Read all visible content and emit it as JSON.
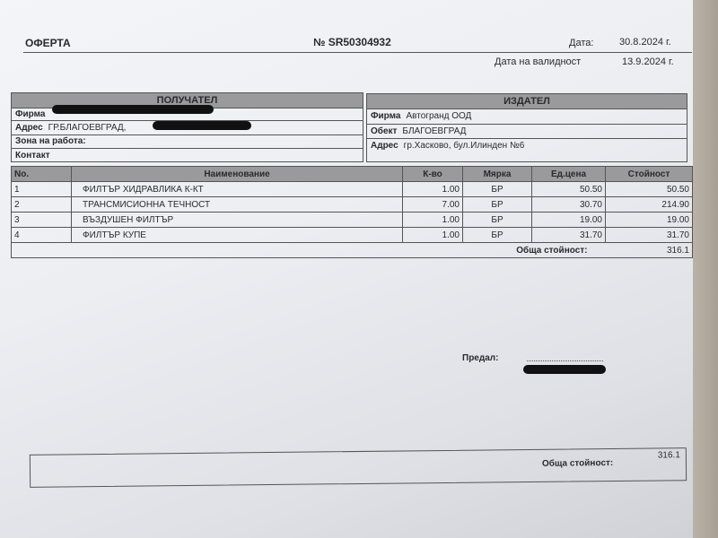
{
  "header": {
    "title": "ОФЕРТА",
    "number": "№ SR50304932",
    "date_label": "Дата:",
    "date": "30.8.2024 г.",
    "validity_label": "Дата на валидност",
    "validity": "13.9.2024 г."
  },
  "recipient": {
    "title": "ПОЛУЧАТЕЛ",
    "firm_label": "Фирма",
    "address_label": "Адрес",
    "address": "ГР.БЛАГОЕВГРАД,",
    "zone_label": "Зона на работа:",
    "contact_label": "Контакт"
  },
  "issuer": {
    "title": "ИЗДАТЕЛ",
    "firm_label": "Фирма",
    "firm": "Автогранд ООД",
    "site_label": "Обект",
    "site": "БЛАГОЕВГРАД",
    "address_label": "Адрес",
    "address": "гр.Хасково, бул.Илинден №6"
  },
  "items": {
    "columns": [
      "No.",
      "Наименование",
      "К-во",
      "Мярка",
      "Ед.цена",
      "Стойност"
    ],
    "rows": [
      [
        "1",
        "ФИЛТЪР ХИДРАВЛИКА К-КТ",
        "1.00",
        "БР",
        "50.50",
        "50.50"
      ],
      [
        "2",
        "ТРАНСМИСИОННА ТЕЧНОСТ",
        "7.00",
        "БР",
        "30.70",
        "214.90"
      ],
      [
        "3",
        "ВЪЗДУШЕН ФИЛТЪР",
        "1.00",
        "БР",
        "19.00",
        "19.00"
      ],
      [
        "4",
        "ФИЛТЪР КУПЕ",
        "1.00",
        "БР",
        "31.70",
        "31.70"
      ]
    ],
    "total_label": "Обща стойност:",
    "total": "316.1"
  },
  "footer": {
    "handed_label": "Предал:",
    "total_label": "Обща стойност:",
    "total": "316.1"
  }
}
